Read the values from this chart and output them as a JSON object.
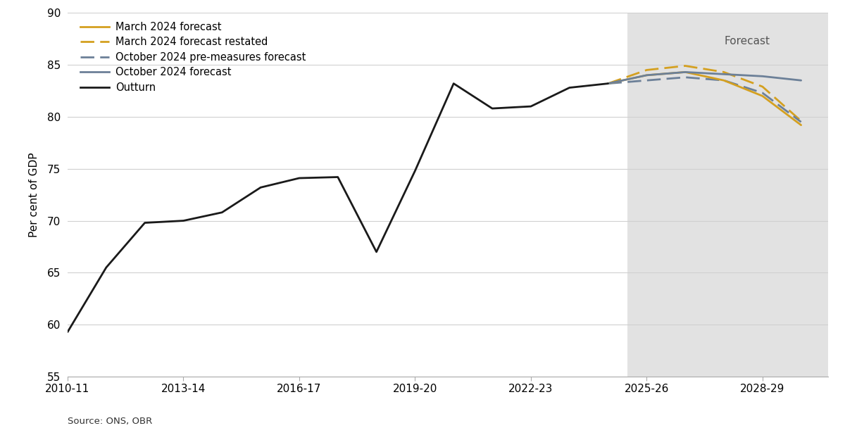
{
  "outturn_x": [
    2010,
    2011,
    2012,
    2013,
    2014,
    2015,
    2016,
    2017,
    2018,
    2019,
    2020,
    2021,
    2022,
    2023,
    2024
  ],
  "outturn_y": [
    59.3,
    65.5,
    69.8,
    70.0,
    70.8,
    73.2,
    74.1,
    74.2,
    67.0,
    74.8,
    83.2,
    80.8,
    81.0,
    82.8,
    83.2
  ],
  "march2024_x": [
    2024,
    2025,
    2026,
    2027,
    2028,
    2029
  ],
  "march2024_y": [
    83.2,
    84.0,
    84.3,
    83.5,
    82.0,
    79.2
  ],
  "march2024_restated_x": [
    2024,
    2025,
    2026,
    2027,
    2028,
    2029
  ],
  "march2024_restated_y": [
    83.2,
    84.5,
    84.9,
    84.3,
    82.9,
    79.6
  ],
  "oct2024_premeasures_x": [
    2024,
    2025,
    2026,
    2027,
    2028,
    2029
  ],
  "oct2024_premeasures_y": [
    83.2,
    83.5,
    83.8,
    83.5,
    82.3,
    79.5
  ],
  "oct2024_x": [
    2024,
    2025,
    2026,
    2027,
    2028,
    2029
  ],
  "oct2024_y": [
    83.2,
    84.0,
    84.3,
    84.1,
    83.9,
    83.5
  ],
  "forecast_start": 2024.5,
  "xlim": [
    2010,
    2029.7
  ],
  "ylim": [
    55,
    90
  ],
  "yticks": [
    55,
    60,
    65,
    70,
    75,
    80,
    85,
    90
  ],
  "xtick_labels": [
    "2010-11",
    "2013-14",
    "2016-17",
    "2019-20",
    "2022-23",
    "2025-26",
    "2028-29"
  ],
  "xtick_positions": [
    2010,
    2013,
    2016,
    2019,
    2022,
    2025,
    2028
  ],
  "ylabel": "Per cent of GDP",
  "source": "Source: ONS, OBR",
  "forecast_label": "Forecast",
  "legend_entries": [
    "March 2024 forecast",
    "March 2024 forecast restated",
    "October 2024 pre-measures forecast",
    "October 2024 forecast",
    "Outturn"
  ],
  "color_yellow": "#D4A020",
  "color_steel": "#6C8098",
  "color_black": "#1a1a1a",
  "background_color": "#ffffff",
  "forecast_bg_color": "#E2E2E2"
}
